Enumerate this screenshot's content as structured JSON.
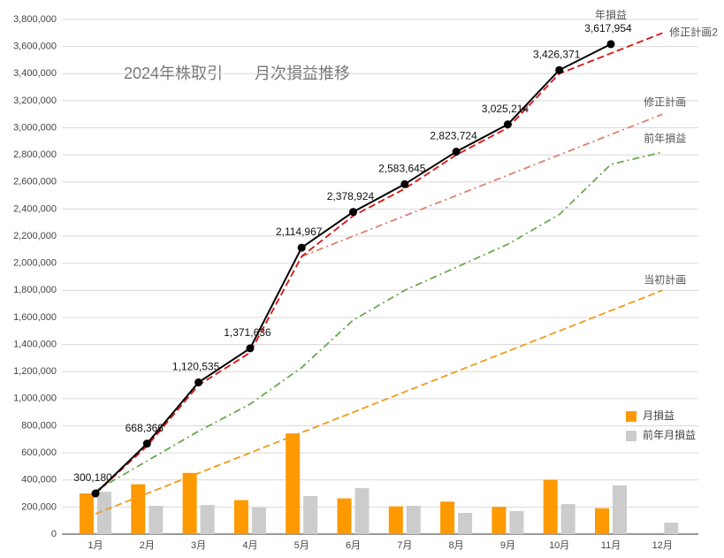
{
  "chart_data": {
    "type": "combo",
    "title": "2024年株取引　　月次損益推移",
    "categories": [
      "1月",
      "2月",
      "3月",
      "4月",
      "5月",
      "6月",
      "7月",
      "8月",
      "9月",
      "10月",
      "11月",
      "12月"
    ],
    "ylim": [
      0,
      3800000
    ],
    "yticks": [
      0,
      {
        "value": 200000,
        "label": "200,000"
      },
      {
        "value": 400000,
        "label": "400,000"
      },
      {
        "value": 600000,
        "label": "600,000"
      },
      {
        "value": 800000,
        "label": "800,000"
      },
      {
        "value": 1000000,
        "label": "1,000,000"
      },
      {
        "value": 1200000,
        "label": "1,200,000"
      },
      {
        "value": 1400000,
        "label": "1,400,000"
      },
      {
        "value": 1600000,
        "label": "1,600,000"
      },
      {
        "value": 1800000,
        "label": "1,800,000"
      },
      {
        "value": 2000000,
        "label": "2,000,000"
      },
      {
        "value": 2200000,
        "label": "2,200,000"
      },
      {
        "value": 2400000,
        "label": "2,400,000"
      },
      {
        "value": 2600000,
        "label": "2,600,000"
      },
      {
        "value": 2800000,
        "label": "2,800,000"
      },
      {
        "value": 3000000,
        "label": "3,000,000"
      },
      {
        "value": 3200000,
        "label": "3,200,000"
      },
      {
        "value": 3400000,
        "label": "3,400,000"
      },
      {
        "value": 3600000,
        "label": "3,600,000"
      },
      {
        "value": 3800000,
        "label": "3,800,000"
      }
    ],
    "grid": true,
    "legend": "right",
    "series": [
      {
        "name": "月損益",
        "type": "bar",
        "color": "#ff9900",
        "values": [
          300180,
          368186,
          452169,
          251101,
          743331,
          263957,
          204721,
          240079,
          201490,
          401157,
          191583,
          null
        ]
      },
      {
        "name": "前年月損益",
        "type": "bar",
        "color": "#cccccc",
        "values": [
          313000,
          209000,
          215000,
          196000,
          281000,
          340000,
          209000,
          157000,
          170000,
          222000,
          359000,
          85000
        ]
      },
      {
        "name": "年損益",
        "type": "line",
        "dash": "solid",
        "markers": true,
        "color": "#000000",
        "values": [
          300180,
          668366,
          1120535,
          1371636,
          2114967,
          2378924,
          2583645,
          2823724,
          3025214,
          3426371,
          3617954,
          null
        ],
        "value_labels": [
          "300,180",
          "668,366",
          "1,120,535",
          "1,371,636",
          "2,114,967",
          "2,378,924",
          "2,583,645",
          "2,823,724",
          "3,025,214",
          "3,426,371",
          "3,617,954",
          null
        ]
      },
      {
        "name": "修正計画2",
        "type": "line",
        "dash": "dashed",
        "color": "#dd1111",
        "values": [
          300000,
          650000,
          1100000,
          1340000,
          2050000,
          2350000,
          2550000,
          2800000,
          3000000,
          3400000,
          3550000,
          3700000
        ]
      },
      {
        "name": "修正計画",
        "type": "line",
        "dash": "dashdot",
        "color": "#e08070",
        "values": [
          null,
          null,
          null,
          null,
          2050000,
          2200000,
          2350000,
          2500000,
          2650000,
          2800000,
          2950000,
          3100000
        ]
      },
      {
        "name": "前年損益",
        "type": "line",
        "dash": "dashdot",
        "color": "#6aa84f",
        "values": [
          320000,
          540000,
          760000,
          960000,
          1230000,
          1580000,
          1800000,
          1970000,
          2140000,
          2360000,
          2730000,
          2820000
        ]
      },
      {
        "name": "当初計画",
        "type": "line",
        "dash": "dashed",
        "color": "#f29a1a",
        "values": [
          150000,
          300000,
          450000,
          600000,
          750000,
          900000,
          1050000,
          1200000,
          1350000,
          1500000,
          1650000,
          1800000
        ]
      }
    ]
  }
}
